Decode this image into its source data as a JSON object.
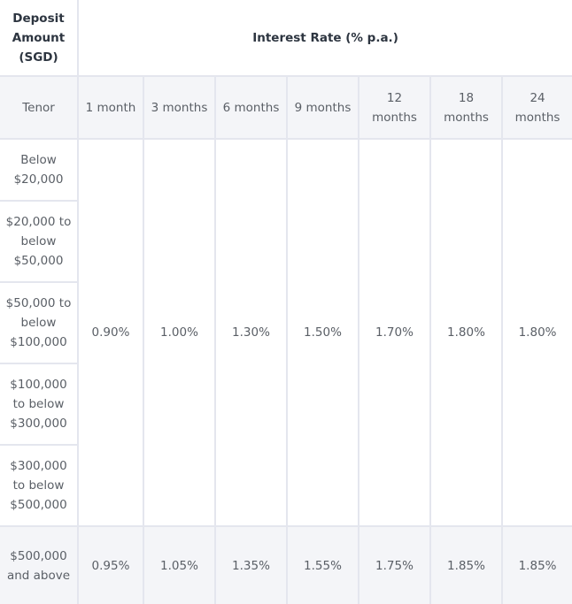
{
  "header": {
    "deposit_amount": "Deposit Amount (SGD)",
    "interest_rate": "Interest Rate (% p.a.)"
  },
  "tenor_label": "Tenor",
  "tenors": [
    "1 month",
    "3 months",
    "6 months",
    "9 months",
    "12 months",
    "18 months",
    "24 months"
  ],
  "bands": [
    "Below $20,000",
    "$20,000 to below $50,000",
    "$50,000 to below $100,000",
    "$100,000 to below $300,000",
    "$300,000 to below $500,000"
  ],
  "rates_below_500k": [
    "0.90%",
    "1.00%",
    "1.30%",
    "1.50%",
    "1.70%",
    "1.80%",
    "1.80%"
  ],
  "top_band": "$500,000 and above",
  "rates_500k_and_above": [
    "0.95%",
    "1.05%",
    "1.35%",
    "1.55%",
    "1.75%",
    "1.85%",
    "1.85%"
  ]
}
